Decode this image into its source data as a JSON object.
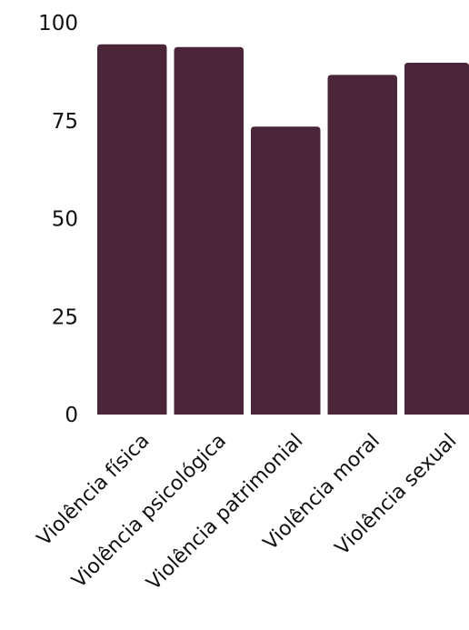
{
  "chart_data": {
    "type": "bar",
    "categories": [
      "Violência física",
      "Violência psicológica",
      "Violência patrimonial",
      "Violência moral",
      "Violência sexual"
    ],
    "values": [
      94.5,
      93.8,
      73.5,
      86.7,
      89.8
    ],
    "title": "",
    "xlabel": "",
    "ylabel": "",
    "ylim": [
      0,
      100
    ],
    "yticks": [
      "0",
      "25",
      "50",
      "75",
      "100"
    ],
    "grid": false,
    "legend": "none",
    "bar_color": "#4a2638"
  }
}
